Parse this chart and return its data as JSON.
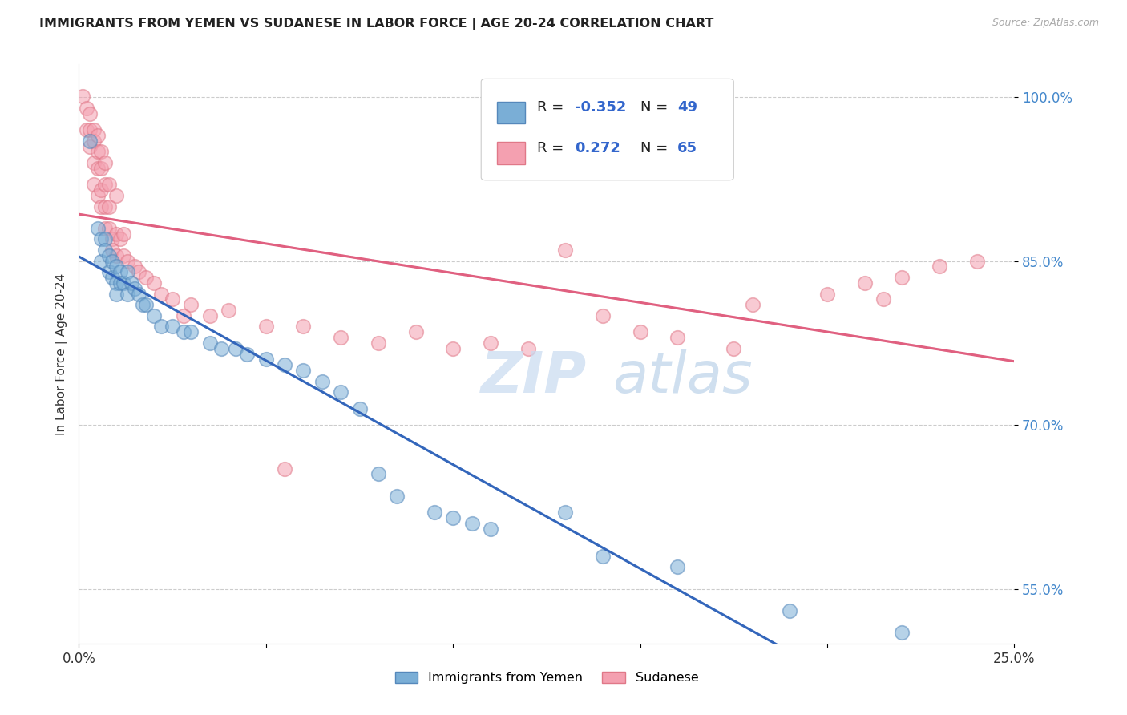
{
  "title": "IMMIGRANTS FROM YEMEN VS SUDANESE IN LABOR FORCE | AGE 20-24 CORRELATION CHART",
  "source": "Source: ZipAtlas.com",
  "ylabel": "In Labor Force | Age 20-24",
  "xmin": 0.0,
  "xmax": 0.25,
  "ymin": 0.5,
  "ymax": 1.03,
  "yticks": [
    0.55,
    0.7,
    0.85,
    1.0
  ],
  "ytick_labels": [
    "55.0%",
    "70.0%",
    "85.0%",
    "100.0%"
  ],
  "xticks": [
    0.0,
    0.05,
    0.1,
    0.15,
    0.2,
    0.25
  ],
  "xtick_labels": [
    "0.0%",
    "",
    "",
    "",
    "",
    "25.0%"
  ],
  "legend_r_yemen": "-0.352",
  "legend_n_yemen": "49",
  "legend_r_sudanese": "0.272",
  "legend_n_sudanese": "65",
  "yemen_color": "#7aaed6",
  "sudanese_color": "#f4a0b0",
  "yemen_scatter": [
    [
      0.003,
      0.96
    ],
    [
      0.005,
      0.88
    ],
    [
      0.006,
      0.87
    ],
    [
      0.006,
      0.85
    ],
    [
      0.007,
      0.87
    ],
    [
      0.007,
      0.86
    ],
    [
      0.008,
      0.855
    ],
    [
      0.008,
      0.84
    ],
    [
      0.009,
      0.85
    ],
    [
      0.009,
      0.835
    ],
    [
      0.01,
      0.845
    ],
    [
      0.01,
      0.83
    ],
    [
      0.01,
      0.82
    ],
    [
      0.011,
      0.84
    ],
    [
      0.011,
      0.83
    ],
    [
      0.012,
      0.83
    ],
    [
      0.013,
      0.84
    ],
    [
      0.013,
      0.82
    ],
    [
      0.014,
      0.83
    ],
    [
      0.015,
      0.825
    ],
    [
      0.016,
      0.82
    ],
    [
      0.017,
      0.81
    ],
    [
      0.018,
      0.81
    ],
    [
      0.02,
      0.8
    ],
    [
      0.022,
      0.79
    ],
    [
      0.025,
      0.79
    ],
    [
      0.028,
      0.785
    ],
    [
      0.03,
      0.785
    ],
    [
      0.035,
      0.775
    ],
    [
      0.038,
      0.77
    ],
    [
      0.042,
      0.77
    ],
    [
      0.045,
      0.765
    ],
    [
      0.05,
      0.76
    ],
    [
      0.055,
      0.755
    ],
    [
      0.06,
      0.75
    ],
    [
      0.065,
      0.74
    ],
    [
      0.07,
      0.73
    ],
    [
      0.075,
      0.715
    ],
    [
      0.08,
      0.655
    ],
    [
      0.085,
      0.635
    ],
    [
      0.095,
      0.62
    ],
    [
      0.1,
      0.615
    ],
    [
      0.105,
      0.61
    ],
    [
      0.11,
      0.605
    ],
    [
      0.13,
      0.62
    ],
    [
      0.14,
      0.58
    ],
    [
      0.16,
      0.57
    ],
    [
      0.19,
      0.53
    ],
    [
      0.22,
      0.51
    ]
  ],
  "sudanese_scatter": [
    [
      0.001,
      1.001
    ],
    [
      0.002,
      0.99
    ],
    [
      0.002,
      0.97
    ],
    [
      0.003,
      0.985
    ],
    [
      0.003,
      0.97
    ],
    [
      0.003,
      0.955
    ],
    [
      0.004,
      0.97
    ],
    [
      0.004,
      0.96
    ],
    [
      0.004,
      0.94
    ],
    [
      0.004,
      0.92
    ],
    [
      0.005,
      0.965
    ],
    [
      0.005,
      0.95
    ],
    [
      0.005,
      0.935
    ],
    [
      0.005,
      0.91
    ],
    [
      0.006,
      0.95
    ],
    [
      0.006,
      0.935
    ],
    [
      0.006,
      0.915
    ],
    [
      0.006,
      0.9
    ],
    [
      0.007,
      0.94
    ],
    [
      0.007,
      0.92
    ],
    [
      0.007,
      0.9
    ],
    [
      0.007,
      0.88
    ],
    [
      0.008,
      0.92
    ],
    [
      0.008,
      0.9
    ],
    [
      0.008,
      0.88
    ],
    [
      0.009,
      0.87
    ],
    [
      0.009,
      0.86
    ],
    [
      0.01,
      0.91
    ],
    [
      0.01,
      0.875
    ],
    [
      0.01,
      0.855
    ],
    [
      0.011,
      0.87
    ],
    [
      0.012,
      0.875
    ],
    [
      0.012,
      0.855
    ],
    [
      0.013,
      0.85
    ],
    [
      0.015,
      0.845
    ],
    [
      0.016,
      0.84
    ],
    [
      0.018,
      0.835
    ],
    [
      0.02,
      0.83
    ],
    [
      0.022,
      0.82
    ],
    [
      0.025,
      0.815
    ],
    [
      0.028,
      0.8
    ],
    [
      0.03,
      0.81
    ],
    [
      0.035,
      0.8
    ],
    [
      0.04,
      0.805
    ],
    [
      0.05,
      0.79
    ],
    [
      0.055,
      0.66
    ],
    [
      0.06,
      0.79
    ],
    [
      0.07,
      0.78
    ],
    [
      0.08,
      0.775
    ],
    [
      0.09,
      0.785
    ],
    [
      0.1,
      0.77
    ],
    [
      0.11,
      0.775
    ],
    [
      0.12,
      0.77
    ],
    [
      0.13,
      0.86
    ],
    [
      0.14,
      0.8
    ],
    [
      0.15,
      0.785
    ],
    [
      0.16,
      0.78
    ],
    [
      0.175,
      0.77
    ],
    [
      0.18,
      0.81
    ],
    [
      0.2,
      0.82
    ],
    [
      0.21,
      0.83
    ],
    [
      0.215,
      0.815
    ],
    [
      0.22,
      0.835
    ],
    [
      0.23,
      0.845
    ],
    [
      0.24,
      0.85
    ]
  ],
  "watermark_zip": "ZIP",
  "watermark_atlas": "atlas",
  "background_color": "#ffffff",
  "plot_bg_color": "#ffffff",
  "grid_color": "#cccccc"
}
